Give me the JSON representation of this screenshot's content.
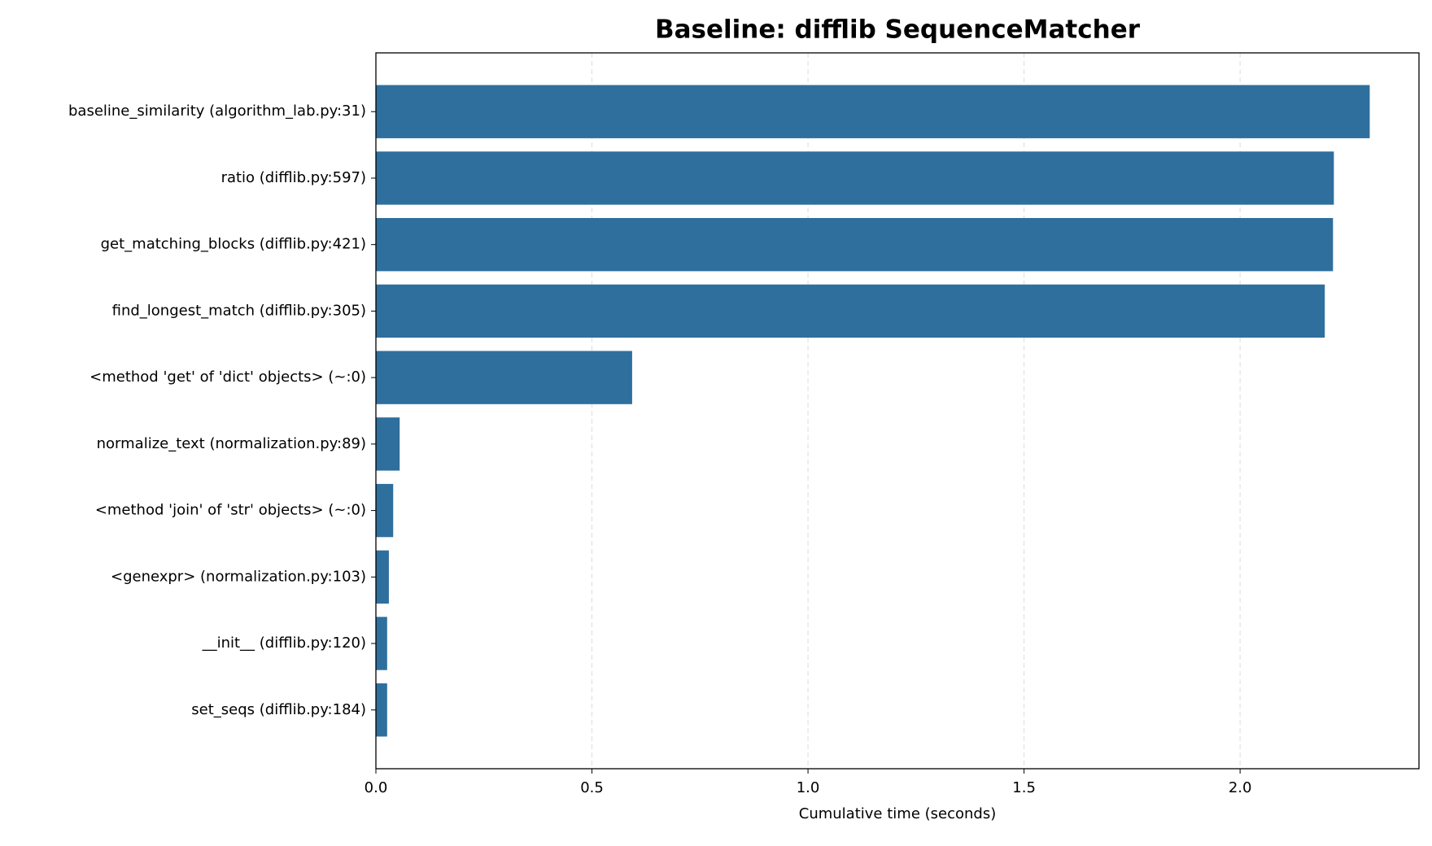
{
  "chart_data": {
    "type": "barh",
    "title": "Baseline: difflib SequenceMatcher",
    "x_label": "Cumulative time (seconds)",
    "categories": [
      "baseline_similarity (algorithm_lab.py:31)",
      "ratio (difflib.py:597)",
      "get_matching_blocks (difflib.py:421)",
      "find_longest_match (difflib.py:305)",
      "<method 'get' of 'dict' objects> (~:0)",
      "normalize_text (normalization.py:89)",
      "<method 'join' of 'str' objects> (~:0)",
      "<genexpr> (normalization.py:103)",
      "__init__ (difflib.py:120)",
      "set_seqs (difflib.py:184)"
    ],
    "values": [
      2.3,
      2.217,
      2.215,
      2.196,
      0.593,
      0.055,
      0.04,
      0.03,
      0.026,
      0.026
    ],
    "color": "#2e6f9e",
    "xlim": [
      0,
      2.414
    ],
    "xticks": [
      {
        "value": 0,
        "label": "0.0"
      },
      0.5,
      {
        "value": 1,
        "label": "1.0"
      },
      1.5,
      {
        "value": 2,
        "label": "2.0"
      }
    ],
    "grid": true
  }
}
